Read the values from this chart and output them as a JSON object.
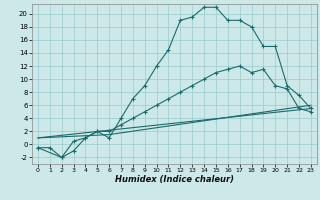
{
  "xlabel": "Humidex (Indice chaleur)",
  "bg_color": "#cce8e8",
  "grid_color": "#99cccc",
  "line_color": "#1a6b6b",
  "xlim": [
    -0.5,
    23.5
  ],
  "ylim": [
    -3.0,
    21.5
  ],
  "xticks": [
    0,
    1,
    2,
    3,
    4,
    5,
    6,
    7,
    8,
    9,
    10,
    11,
    12,
    13,
    14,
    15,
    16,
    17,
    18,
    19,
    20,
    21,
    22,
    23
  ],
  "yticks": [
    -2,
    0,
    2,
    4,
    6,
    8,
    10,
    12,
    14,
    16,
    18,
    20
  ],
  "line1_x": [
    0,
    1,
    2,
    3,
    4,
    5,
    6,
    7,
    8,
    9,
    10,
    11,
    12,
    13,
    14,
    15,
    16,
    17,
    18,
    19,
    20,
    21,
    22,
    23
  ],
  "line1_y": [
    -0.5,
    -0.5,
    -2,
    -1,
    1,
    2,
    1,
    4,
    7,
    9,
    12,
    14.5,
    19,
    19.5,
    21,
    21,
    19,
    19,
    18,
    15,
    15,
    9,
    7.5,
    5.5
  ],
  "line2_x": [
    0,
    2,
    3,
    4,
    5,
    6,
    7,
    8,
    9,
    10,
    11,
    12,
    13,
    14,
    15,
    16,
    17,
    18,
    19,
    20,
    21,
    22,
    23
  ],
  "line2_y": [
    -0.5,
    -2,
    0.5,
    1,
    2,
    2,
    3,
    4,
    5,
    6,
    7,
    8,
    9,
    10,
    11,
    11.5,
    12,
    11,
    11.5,
    9,
    8.5,
    5.5,
    5
  ],
  "line3_x": [
    0,
    23
  ],
  "line3_y": [
    1.0,
    5.5
  ],
  "line4_x": [
    0,
    6,
    23
  ],
  "line4_y": [
    1.0,
    1.5,
    6.0
  ]
}
